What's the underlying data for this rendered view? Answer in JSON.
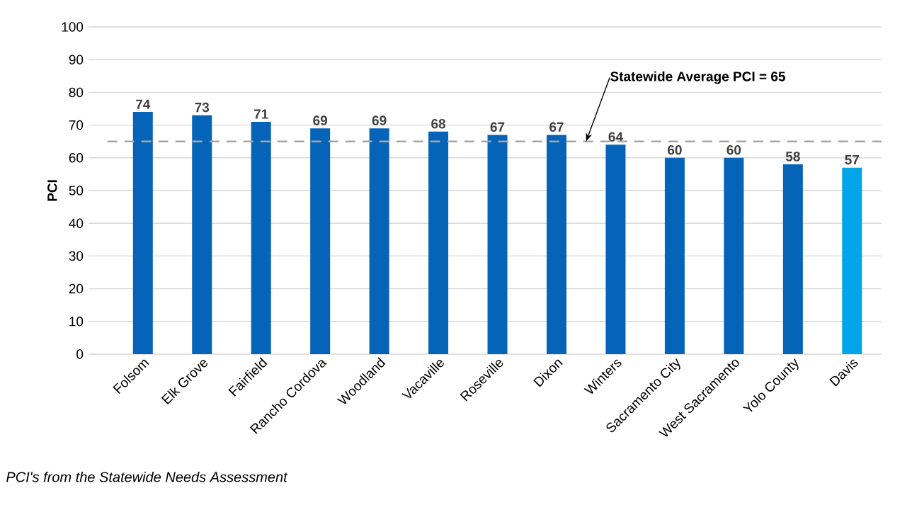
{
  "chart_data": {
    "type": "bar",
    "ylabel": "PCI",
    "categories": [
      "Folsom",
      "Elk Grove",
      "Fairfield",
      "Rancho Cordova",
      "Woodland",
      "Vacaville",
      "Roseville",
      "Dixon",
      "Winters",
      "Sacramento City",
      "West Sacramento",
      "Yolo County",
      "Davis"
    ],
    "values": [
      74,
      73,
      71,
      69,
      69,
      68,
      67,
      67,
      64,
      60,
      60,
      58,
      57
    ],
    "colors": [
      "#0563b8",
      "#0563b8",
      "#0563b8",
      "#0563b8",
      "#0563b8",
      "#0563b8",
      "#0563b8",
      "#0563b8",
      "#0563b8",
      "#0563b8",
      "#0563b8",
      "#0563b8",
      "#00a6e8"
    ],
    "ylim": [
      0,
      100
    ],
    "yticks": [
      0,
      10,
      20,
      30,
      40,
      50,
      60,
      70,
      80,
      90,
      100
    ],
    "grid": "y",
    "data_labels": true,
    "ref_lines": [
      {
        "axis": "y",
        "value": 65,
        "label": "Statewide Average PCI = 65",
        "color": "#a6a6a6",
        "line_style": "dashed"
      }
    ],
    "annotations": [
      "PCI's from the Statewide Needs Assessment"
    ]
  }
}
